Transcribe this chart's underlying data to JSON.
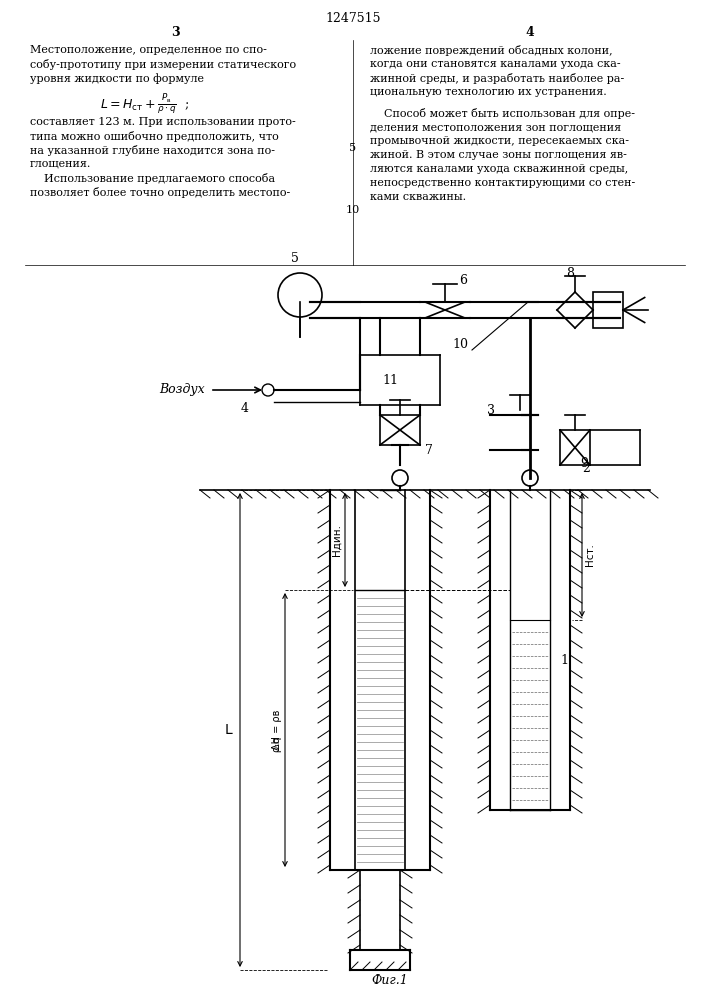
{
  "title": "1247515",
  "page_left": "3",
  "page_right": "4",
  "fig_caption": "Фиг.1",
  "bg_color": "#ffffff",
  "line_color": "#000000",
  "left_col_lines": [
    "Местоположение, определенное по спо-",
    "собу-прототипу при измерении статического",
    "уровня жидкости по формуле"
  ],
  "right_col_lines": [
    "ложение повреждений обсадных колони,",
    "когда они становятся каналами ухода сква-",
    "жинной среды, и разработать наиболее ра-",
    "циональную технологию их устранения.",
    "    Способ может быть использован для опре-",
    "деления местоположения зон поглощения",
    "промывочной жидкости, пересекаемых сква-",
    "жиной. В этом случае зоны поглощения яв-",
    "ляются каналами ухода скважинной среды,",
    "непосредственно контактирующими со стен-",
    "ками скважины."
  ]
}
